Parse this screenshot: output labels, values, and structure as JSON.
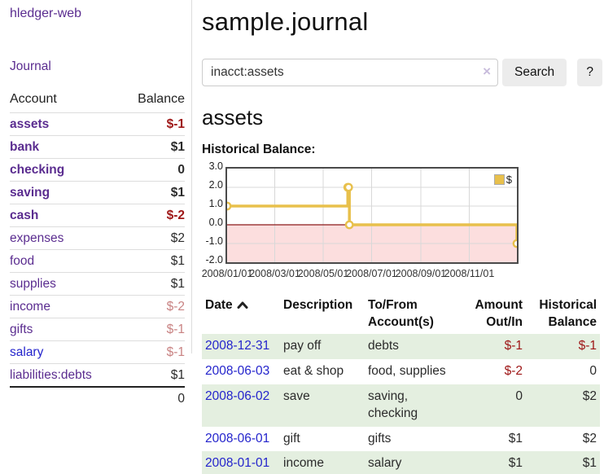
{
  "app": {
    "title": "hledger-web"
  },
  "sidebar": {
    "nav_journal": "Journal",
    "accounts": {
      "header_account": "Account",
      "header_balance": "Balance",
      "rows": [
        {
          "name": "assets",
          "indent": 1,
          "balance": "$-1",
          "bold": true,
          "neg": "strong",
          "link": "purple"
        },
        {
          "name": "bank",
          "indent": 2,
          "balance": "$1",
          "bold": true,
          "neg": "none",
          "link": "purple"
        },
        {
          "name": "checking",
          "indent": 3,
          "balance": "0",
          "bold": true,
          "neg": "none",
          "link": "purple"
        },
        {
          "name": "saving",
          "indent": 3,
          "balance": "$1",
          "bold": true,
          "neg": "none",
          "link": "purple"
        },
        {
          "name": "cash",
          "indent": 2,
          "balance": "$-2",
          "bold": true,
          "neg": "strong",
          "link": "purple"
        },
        {
          "name": "expenses",
          "indent": 1,
          "balance": "$2",
          "bold": false,
          "neg": "none",
          "link": "purple"
        },
        {
          "name": "food",
          "indent": 2,
          "balance": "$1",
          "bold": false,
          "neg": "none",
          "link": "purple"
        },
        {
          "name": "supplies",
          "indent": 2,
          "balance": "$1",
          "bold": false,
          "neg": "none",
          "link": "purple"
        },
        {
          "name": "income",
          "indent": 1,
          "balance": "$-2",
          "bold": false,
          "neg": "soft",
          "link": "purple"
        },
        {
          "name": "gifts",
          "indent": 2,
          "balance": "$-1",
          "bold": false,
          "neg": "soft",
          "link": "purple"
        },
        {
          "name": "salary",
          "indent": 2,
          "balance": "$-1",
          "bold": false,
          "neg": "soft",
          "link": "blue"
        },
        {
          "name": "liabilities:debts",
          "indent": 1,
          "balance": "$1",
          "bold": false,
          "neg": "none",
          "link": "purple"
        }
      ],
      "total": "0"
    }
  },
  "main": {
    "title": "sample.journal",
    "search": {
      "value": "inacct:assets",
      "clear_icon": "×",
      "button_label": "Search",
      "help_label": "?"
    },
    "section_title": "assets",
    "chart_label": "Historical Balance:"
  },
  "chart_data": {
    "type": "line",
    "title": "Historical Balance",
    "step": true,
    "series": [
      {
        "name": "$",
        "color": "#e8c04c",
        "points": [
          {
            "date": "2008-01-01",
            "day": 0,
            "value": 1
          },
          {
            "date": "2008-06-01",
            "day": 152,
            "value": 2
          },
          {
            "date": "2008-06-02",
            "day": 153,
            "value": 2
          },
          {
            "date": "2008-06-03",
            "day": 154,
            "value": 0
          },
          {
            "date": "2008-12-31",
            "day": 365,
            "value": -1
          }
        ]
      }
    ],
    "x_range_days": 365,
    "x_ticks": [
      {
        "day": 0,
        "label": "2008/01/01"
      },
      {
        "day": 60,
        "label": "2008/03/01"
      },
      {
        "day": 121,
        "label": "2008/05/01"
      },
      {
        "day": 182,
        "label": "2008/07/01"
      },
      {
        "day": 244,
        "label": "2008/09/01"
      },
      {
        "day": 305,
        "label": "2008/11/01"
      }
    ],
    "y_ticks": [
      3.0,
      2.0,
      1.0,
      0.0,
      -1.0,
      -2.0
    ],
    "ylim": [
      -2,
      3
    ],
    "grid": true,
    "legend_position": "top-right",
    "colors": {
      "negative_fill": "#fcdede",
      "zero_line": "#8b1a1a",
      "gridline": "#d8d8d8"
    }
  },
  "table": {
    "headers": [
      {
        "label": "Date",
        "sort": "asc",
        "align": "left"
      },
      {
        "label": "Description",
        "align": "left"
      },
      {
        "label": "To/From Account(s)",
        "align": "left"
      },
      {
        "label": "Amount Out/In",
        "align": "right"
      },
      {
        "label": "Historical Balance",
        "align": "right"
      }
    ],
    "rows": [
      {
        "date": "2008-12-31",
        "description": "pay off",
        "accounts": "debts",
        "amount": "$-1",
        "balance": "$-1"
      },
      {
        "date": "2008-06-03",
        "description": "eat & shop",
        "accounts": "food, supplies",
        "amount": "$-2",
        "balance": "0"
      },
      {
        "date": "2008-06-02",
        "description": "save",
        "accounts": "saving, checking",
        "amount": "0",
        "balance": "$2"
      },
      {
        "date": "2008-06-01",
        "description": "gift",
        "accounts": "gifts",
        "amount": "$1",
        "balance": "$2"
      },
      {
        "date": "2008-01-01",
        "description": "income",
        "accounts": "salary",
        "amount": "$1",
        "balance": "$1"
      }
    ]
  }
}
